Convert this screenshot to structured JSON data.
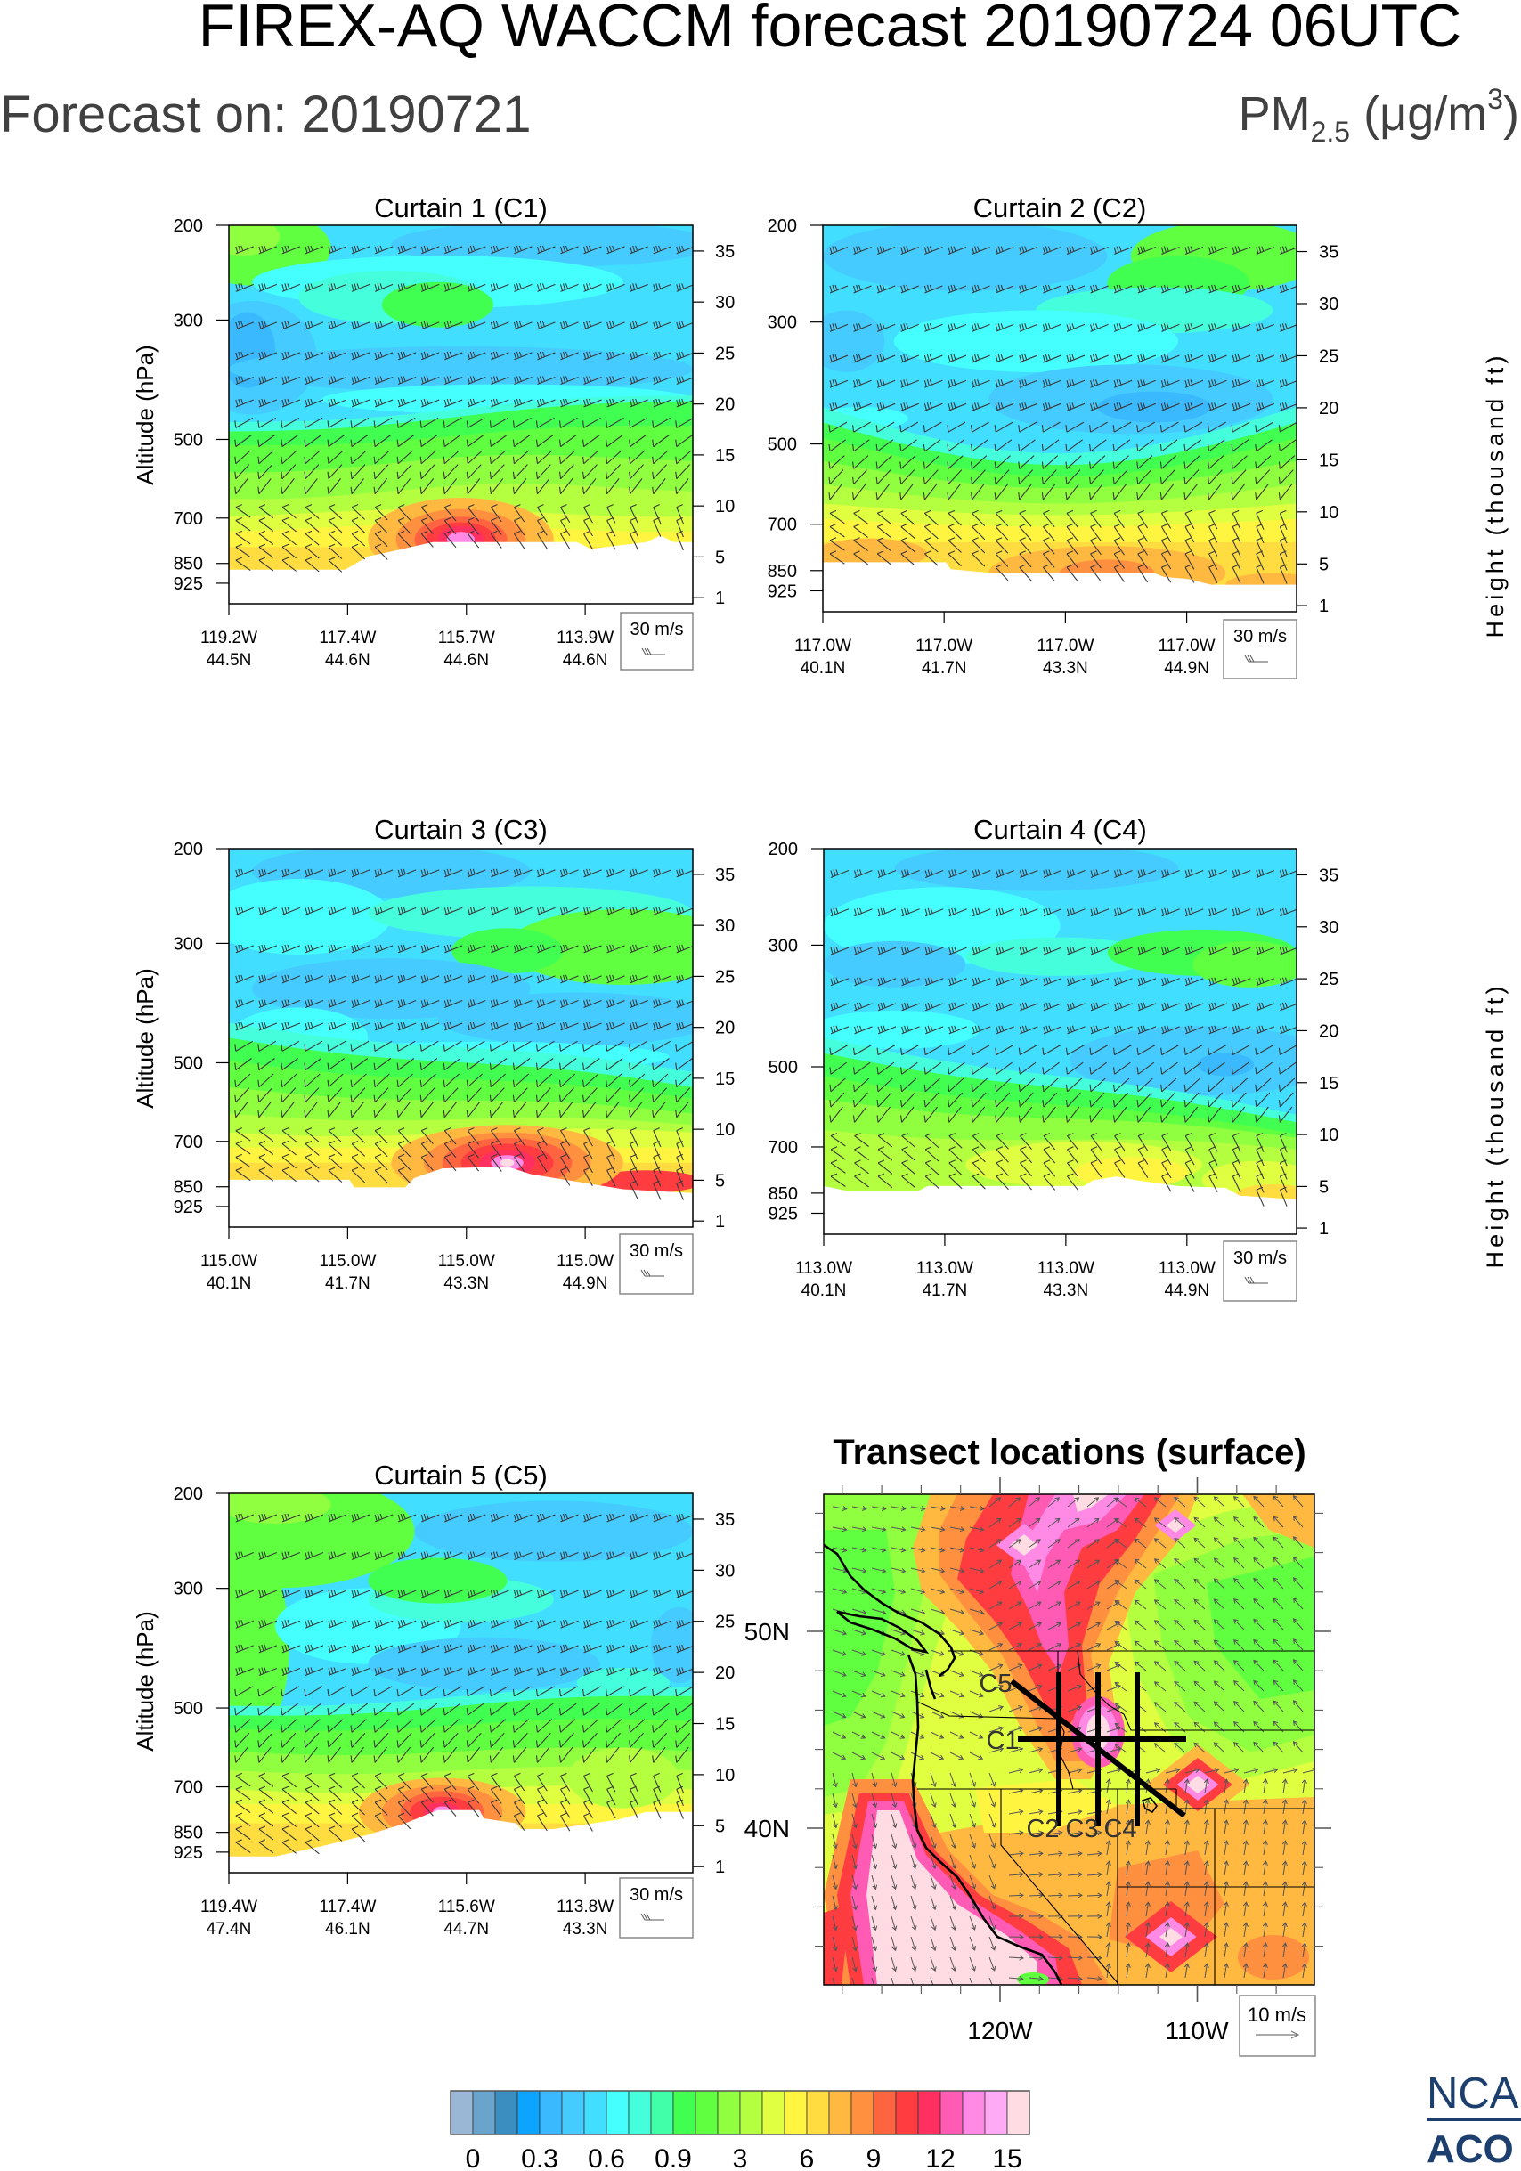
{
  "header": {
    "title": "FIREX-AQ WACCM forecast 20190724 06UTC",
    "forecast_on": "Forecast on: 20190721",
    "units": {
      "species": "PM",
      "subscript": "2.5",
      "open": " (μg/m",
      "superscript": "3",
      "close": ")"
    }
  },
  "chart_data": [
    {
      "type": "heatmap",
      "title": "Curtain 1 (C1)",
      "ylabel": "Altitude (hPa)",
      "yticks": [
        "200",
        "300",
        "500",
        "700",
        "850",
        "925"
      ],
      "y2ticks": [
        "35",
        "30",
        "25",
        "20",
        "15",
        "10",
        "5",
        "1"
      ],
      "xticks": [
        {
          "lon": "119.2W",
          "lat": "44.5N"
        },
        {
          "lon": "117.4W",
          "lat": "44.6N"
        },
        {
          "lon": "115.7W",
          "lat": "44.6N"
        },
        {
          "lon": "113.9W",
          "lat": "44.6N"
        }
      ],
      "ylim": [
        1010,
        200
      ],
      "wind_reference": "30 m/s"
    },
    {
      "type": "heatmap",
      "title": "Curtain 2 (C2)",
      "y2label": "Height (thousand ft)",
      "yticks": [
        "200",
        "300",
        "500",
        "700",
        "850",
        "925"
      ],
      "y2ticks": [
        "35",
        "30",
        "25",
        "20",
        "15",
        "10",
        "5",
        "1"
      ],
      "xticks": [
        {
          "lon": "117.0W",
          "lat": "40.1N"
        },
        {
          "lon": "117.0W",
          "lat": "41.7N"
        },
        {
          "lon": "117.0W",
          "lat": "43.3N"
        },
        {
          "lon": "117.0W",
          "lat": "44.9N"
        }
      ],
      "ylim": [
        1010,
        200
      ],
      "wind_reference": "30 m/s"
    },
    {
      "type": "heatmap",
      "title": "Curtain 3 (C3)",
      "ylabel": "Altitude (hPa)",
      "yticks": [
        "200",
        "300",
        "500",
        "700",
        "850",
        "925"
      ],
      "y2ticks": [
        "35",
        "30",
        "25",
        "20",
        "15",
        "10",
        "5",
        "1"
      ],
      "xticks": [
        {
          "lon": "115.0W",
          "lat": "40.1N"
        },
        {
          "lon": "115.0W",
          "lat": "41.7N"
        },
        {
          "lon": "115.0W",
          "lat": "43.3N"
        },
        {
          "lon": "115.0W",
          "lat": "44.9N"
        }
      ],
      "ylim": [
        1010,
        200
      ],
      "wind_reference": "30 m/s"
    },
    {
      "type": "heatmap",
      "title": "Curtain 4 (C4)",
      "y2label": "Height (thousand ft)",
      "yticks": [
        "200",
        "300",
        "500",
        "700",
        "850",
        "925"
      ],
      "y2ticks": [
        "35",
        "30",
        "25",
        "20",
        "15",
        "10",
        "5",
        "1"
      ],
      "xticks": [
        {
          "lon": "113.0W",
          "lat": "40.1N"
        },
        {
          "lon": "113.0W",
          "lat": "41.7N"
        },
        {
          "lon": "113.0W",
          "lat": "43.3N"
        },
        {
          "lon": "113.0W",
          "lat": "44.9N"
        }
      ],
      "ylim": [
        1010,
        200
      ],
      "wind_reference": "30 m/s"
    },
    {
      "type": "heatmap",
      "title": "Curtain 5 (C5)",
      "ylabel": "Altitude (hPa)",
      "yticks": [
        "200",
        "300",
        "500",
        "700",
        "850",
        "925"
      ],
      "y2ticks": [
        "35",
        "30",
        "25",
        "20",
        "15",
        "10",
        "5",
        "1"
      ],
      "xticks": [
        {
          "lon": "119.4W",
          "lat": "47.4N"
        },
        {
          "lon": "117.4W",
          "lat": "46.1N"
        },
        {
          "lon": "115.6W",
          "lat": "44.7N"
        },
        {
          "lon": "113.8W",
          "lat": "43.3N"
        }
      ],
      "ylim": [
        1010,
        200
      ],
      "wind_reference": "30 m/s"
    },
    {
      "type": "heatmap",
      "title": "Transect locations (surface)",
      "xticks": [
        "120W",
        "110W"
      ],
      "yticks": [
        "50N",
        "40N"
      ],
      "transect_labels": [
        "C5",
        "C1",
        "C2",
        "C3",
        "C4"
      ],
      "wind_reference": "10 m/s"
    }
  ],
  "colorbar": {
    "labels": [
      "0",
      "0.3",
      "0.6",
      "0.9",
      "3",
      "6",
      "9",
      "12",
      "15"
    ],
    "colors": [
      "#9ab8d6",
      "#6aa3cc",
      "#3a8fc0",
      "#0da4ff",
      "#3ab9ff",
      "#45cbff",
      "#42deff",
      "#45ffff",
      "#45ffdc",
      "#40ffa8",
      "#40ff50",
      "#60ff40",
      "#90ff40",
      "#b4ff40",
      "#e0ff40",
      "#fff540",
      "#ffdd40",
      "#ffb840",
      "#ff9040",
      "#ff6440",
      "#ff3c40",
      "#ff3060",
      "#ff5ab4",
      "#ff8ae6",
      "#ffaaf5",
      "#ffdce4"
    ]
  },
  "logo": {
    "line1": "NCA",
    "line2": "ACO",
    "color": "#1d3f6e"
  }
}
